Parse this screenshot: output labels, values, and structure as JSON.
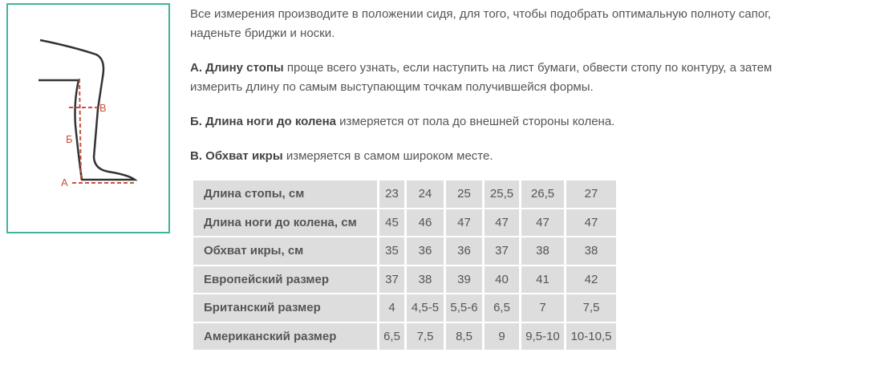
{
  "figure": {
    "labels": {
      "a": "А",
      "b": "Б",
      "v": "В"
    }
  },
  "paragraphs": [
    {
      "lines": [
        "Все измерения производите в положении сидя, для того, чтобы подобрать оптимальную полноту сапог,",
        "наденьте бриджи и носки."
      ]
    },
    {
      "bold": "А. Длину стопы",
      "lines": [
        " проще всего узнать, если наступить на лист бумаги, обвести стопу по контуру, а затем",
        "измерить длину по самым выступающим точкам получившейся формы."
      ]
    },
    {
      "bold": "Б. Длина ноги до колена",
      "lines": [
        " измеряется от пола до внешней стороны колена."
      ]
    },
    {
      "bold": "В. Обхват икры",
      "lines": [
        " измеряется в самом широком месте."
      ]
    }
  ],
  "table": {
    "rows": [
      [
        "Длина стопы, см",
        "23",
        "24",
        "25",
        "25,5",
        "26,5",
        "27"
      ],
      [
        "Длина ноги до колена, см",
        "45",
        "46",
        "47",
        "47",
        "47",
        "47"
      ],
      [
        "Обхват икры, см",
        "35",
        "36",
        "36",
        "37",
        "38",
        "38"
      ],
      [
        "Европейский размер",
        "37",
        "38",
        "39",
        "40",
        "41",
        "42"
      ],
      [
        "Британский размер",
        "4",
        "4,5-5",
        "5,5-6",
        "6,5",
        "7",
        "7,5"
      ],
      [
        "Американский размер",
        "6,5",
        "7,5",
        "8,5",
        "9",
        "9,5-10",
        "10-10,5"
      ]
    ]
  }
}
